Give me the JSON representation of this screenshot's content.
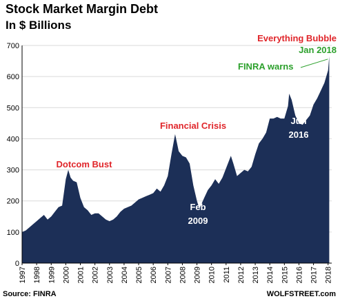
{
  "title": "Stock Market Margin Debt",
  "subtitle": "In $ Billions",
  "source": "Source: FINRA",
  "brand": "WOLFSTREET.com",
  "colors": {
    "area": "#1c2f57",
    "red_annotation": "#e0252a",
    "green_annotation": "#2ca02c",
    "grid": "#d9d9d9",
    "white_annotation": "#ffffff"
  },
  "chart_data": {
    "type": "area",
    "title": "Stock Market Margin Debt",
    "ylabel": "In $ Billions",
    "xlabel": "",
    "ylim": [
      0,
      700
    ],
    "xlim": [
      1997.0,
      2018.25
    ],
    "yticks": [
      0,
      100,
      200,
      300,
      400,
      500,
      600,
      700
    ],
    "xticks": [
      "1997",
      "1998",
      "1999",
      "2000",
      "2001",
      "2002",
      "2003",
      "2004",
      "2005",
      "2006",
      "2007",
      "2008",
      "2009",
      "2010",
      "2011",
      "2012",
      "2013",
      "2014",
      "2015",
      "2016",
      "2017",
      "2018"
    ],
    "grid": "horizontal",
    "series": [
      {
        "points": [
          [
            1997.0,
            100
          ],
          [
            1997.25,
            105
          ],
          [
            1997.5,
            115
          ],
          [
            1997.75,
            125
          ],
          [
            1998.0,
            135
          ],
          [
            1998.25,
            145
          ],
          [
            1998.5,
            155
          ],
          [
            1998.75,
            140
          ],
          [
            1999.0,
            150
          ],
          [
            1999.25,
            165
          ],
          [
            1999.5,
            180
          ],
          [
            1999.75,
            185
          ],
          [
            2000.0,
            270
          ],
          [
            2000.17,
            300
          ],
          [
            2000.33,
            275
          ],
          [
            2000.5,
            265
          ],
          [
            2000.75,
            260
          ],
          [
            2001.0,
            210
          ],
          [
            2001.25,
            180
          ],
          [
            2001.5,
            170
          ],
          [
            2001.75,
            155
          ],
          [
            2002.0,
            160
          ],
          [
            2002.25,
            160
          ],
          [
            2002.5,
            150
          ],
          [
            2002.75,
            140
          ],
          [
            2003.0,
            135
          ],
          [
            2003.25,
            140
          ],
          [
            2003.5,
            150
          ],
          [
            2003.75,
            165
          ],
          [
            2004.0,
            175
          ],
          [
            2004.25,
            180
          ],
          [
            2004.5,
            185
          ],
          [
            2004.75,
            195
          ],
          [
            2005.0,
            205
          ],
          [
            2005.25,
            210
          ],
          [
            2005.5,
            215
          ],
          [
            2005.75,
            220
          ],
          [
            2006.0,
            225
          ],
          [
            2006.25,
            240
          ],
          [
            2006.5,
            230
          ],
          [
            2006.75,
            250
          ],
          [
            2007.0,
            280
          ],
          [
            2007.25,
            350
          ],
          [
            2007.5,
            415
          ],
          [
            2007.75,
            360
          ],
          [
            2008.0,
            345
          ],
          [
            2008.25,
            340
          ],
          [
            2008.5,
            320
          ],
          [
            2008.75,
            250
          ],
          [
            2009.0,
            200
          ],
          [
            2009.17,
            175
          ],
          [
            2009.5,
            210
          ],
          [
            2009.75,
            235
          ],
          [
            2010.0,
            250
          ],
          [
            2010.25,
            270
          ],
          [
            2010.5,
            255
          ],
          [
            2010.75,
            275
          ],
          [
            2011.0,
            305
          ],
          [
            2011.33,
            345
          ],
          [
            2011.5,
            320
          ],
          [
            2011.75,
            280
          ],
          [
            2012.0,
            290
          ],
          [
            2012.25,
            300
          ],
          [
            2012.5,
            295
          ],
          [
            2012.75,
            310
          ],
          [
            2013.0,
            350
          ],
          [
            2013.25,
            385
          ],
          [
            2013.5,
            400
          ],
          [
            2013.75,
            420
          ],
          [
            2014.0,
            465
          ],
          [
            2014.25,
            465
          ],
          [
            2014.5,
            470
          ],
          [
            2014.75,
            465
          ],
          [
            2015.0,
            465
          ],
          [
            2015.25,
            505
          ],
          [
            2015.33,
            545
          ],
          [
            2015.5,
            525
          ],
          [
            2015.75,
            475
          ],
          [
            2016.0,
            450
          ],
          [
            2016.25,
            445
          ],
          [
            2016.5,
            460
          ],
          [
            2016.75,
            475
          ],
          [
            2017.0,
            510
          ],
          [
            2017.25,
            530
          ],
          [
            2017.5,
            555
          ],
          [
            2017.75,
            580
          ],
          [
            2018.0,
            620
          ],
          [
            2018.08,
            665
          ]
        ]
      }
    ],
    "annotations": [
      {
        "text": "Dotcom Bust",
        "color": "red"
      },
      {
        "text": "Financial Crisis",
        "color": "red"
      },
      {
        "text": "Everything Bubble",
        "color": "red"
      },
      {
        "text": "Jan 2018",
        "color": "green"
      },
      {
        "text": "FINRA warns",
        "color": "green"
      },
      {
        "text": "Feb",
        "color": "white"
      },
      {
        "text": "2009",
        "color": "white"
      },
      {
        "text": "Jun",
        "color": "white"
      },
      {
        "text": "2016",
        "color": "white"
      }
    ]
  }
}
